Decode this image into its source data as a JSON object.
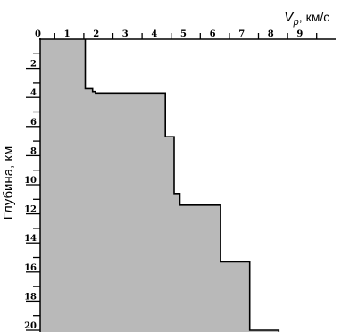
{
  "chart_data": {
    "type": "area",
    "x_axis": {
      "label_symbol": "V",
      "label_subscript": "p",
      "label_unit": ", км/с",
      "ticks": [
        "0",
        "1",
        "2",
        "3",
        "4",
        "5",
        "6",
        "7",
        "8",
        "9"
      ],
      "range": [
        0,
        10
      ],
      "position": "top"
    },
    "y_axis": {
      "label": "Глубина, км",
      "ticks": [
        "2",
        "4",
        "6",
        "8",
        "10",
        "12",
        "14",
        "16",
        "18",
        "20"
      ],
      "range": [
        0,
        20.4
      ],
      "inverted": true
    },
    "profile": {
      "fill_color": "#b9b9b9",
      "line_color": "#000000",
      "points": [
        {
          "depth": 0,
          "vp": 1.55
        },
        {
          "depth": 3.4,
          "vp": 1.55
        },
        {
          "depth": 3.4,
          "vp": 1.8
        },
        {
          "depth": 3.6,
          "vp": 1.8
        },
        {
          "depth": 3.6,
          "vp": 1.9
        },
        {
          "depth": 3.7,
          "vp": 1.9
        },
        {
          "depth": 3.7,
          "vp": 4.3
        },
        {
          "depth": 6.7,
          "vp": 4.3
        },
        {
          "depth": 6.7,
          "vp": 4.6
        },
        {
          "depth": 10.6,
          "vp": 4.6
        },
        {
          "depth": 10.6,
          "vp": 4.8
        },
        {
          "depth": 11.4,
          "vp": 4.8
        },
        {
          "depth": 11.4,
          "vp": 6.2
        },
        {
          "depth": 15.3,
          "vp": 6.2
        },
        {
          "depth": 15.3,
          "vp": 7.2
        },
        {
          "depth": 20.0,
          "vp": 7.2
        },
        {
          "depth": 20.0,
          "vp": 8.2
        },
        {
          "depth": 20.4,
          "vp": 8.2
        }
      ]
    },
    "grid": false,
    "legend": "none"
  }
}
